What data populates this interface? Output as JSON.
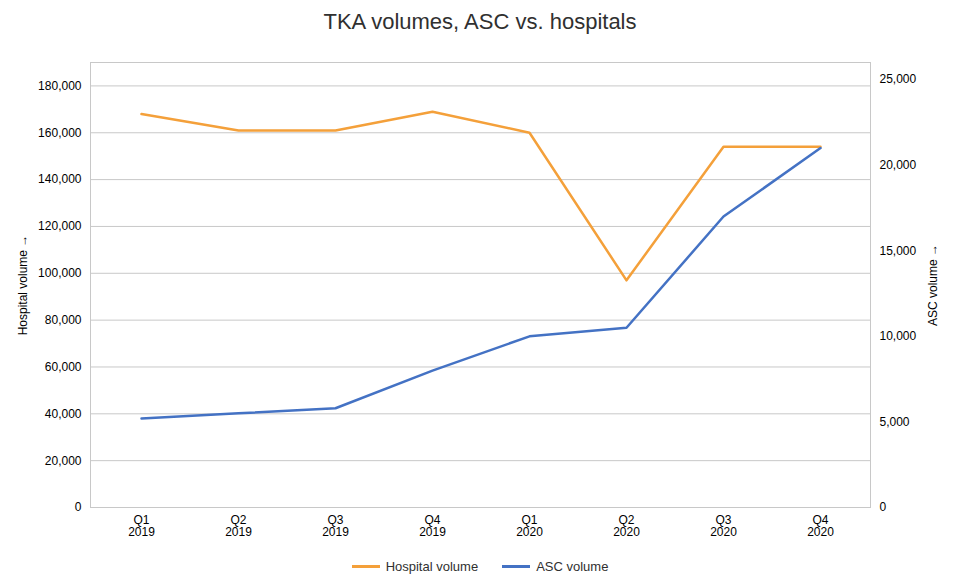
{
  "chart_data": {
    "type": "line",
    "title": "TKA volumes, ASC vs. hospitals",
    "categories": [
      "Q1\n2019",
      "Q2\n2019",
      "Q3\n2019",
      "Q4\n2019",
      "Q1\n2020",
      "Q2\n2020",
      "Q3\n2020",
      "Q4\n2020"
    ],
    "series": [
      {
        "name": "Hospital volume",
        "color": "#F4A03A",
        "values": [
          168000,
          161000,
          161000,
          169000,
          160000,
          97000,
          154000,
          154000
        ]
      },
      {
        "name": "ASC volume",
        "color": "#4472C4",
        "axis": "y2",
        "values": [
          5200,
          5500,
          5800,
          8000,
          10000,
          10500,
          17000,
          21000
        ]
      }
    ],
    "ylabel": "Hospital volume",
    "y2label": "ASC volume",
    "ylim": [
      0,
      190000
    ],
    "yticks": [
      0,
      {
        "value": 20000,
        "label": "20,000"
      },
      {
        "value": 40000,
        "label": "40,000"
      },
      {
        "value": 60000,
        "label": "60,000"
      },
      {
        "value": 80000,
        "label": "80,000"
      },
      {
        "value": 100000,
        "label": "100,000"
      },
      {
        "value": 120000,
        "label": "120,000"
      },
      {
        "value": 140000,
        "label": "140,000"
      },
      {
        "value": 160000,
        "label": "160,000"
      },
      {
        "value": 180000,
        "label": "180,000"
      }
    ],
    "y2lim": [
      0,
      26000
    ],
    "y2ticks": [
      0,
      {
        "value": 5000,
        "label": "5,000"
      },
      {
        "value": 10000,
        "label": "10,000"
      },
      {
        "value": 15000,
        "label": "15,000"
      },
      {
        "value": 20000,
        "label": "20,000"
      },
      {
        "value": 25000,
        "label": "25,000"
      }
    ],
    "grid": true,
    "legend": "bottom"
  }
}
